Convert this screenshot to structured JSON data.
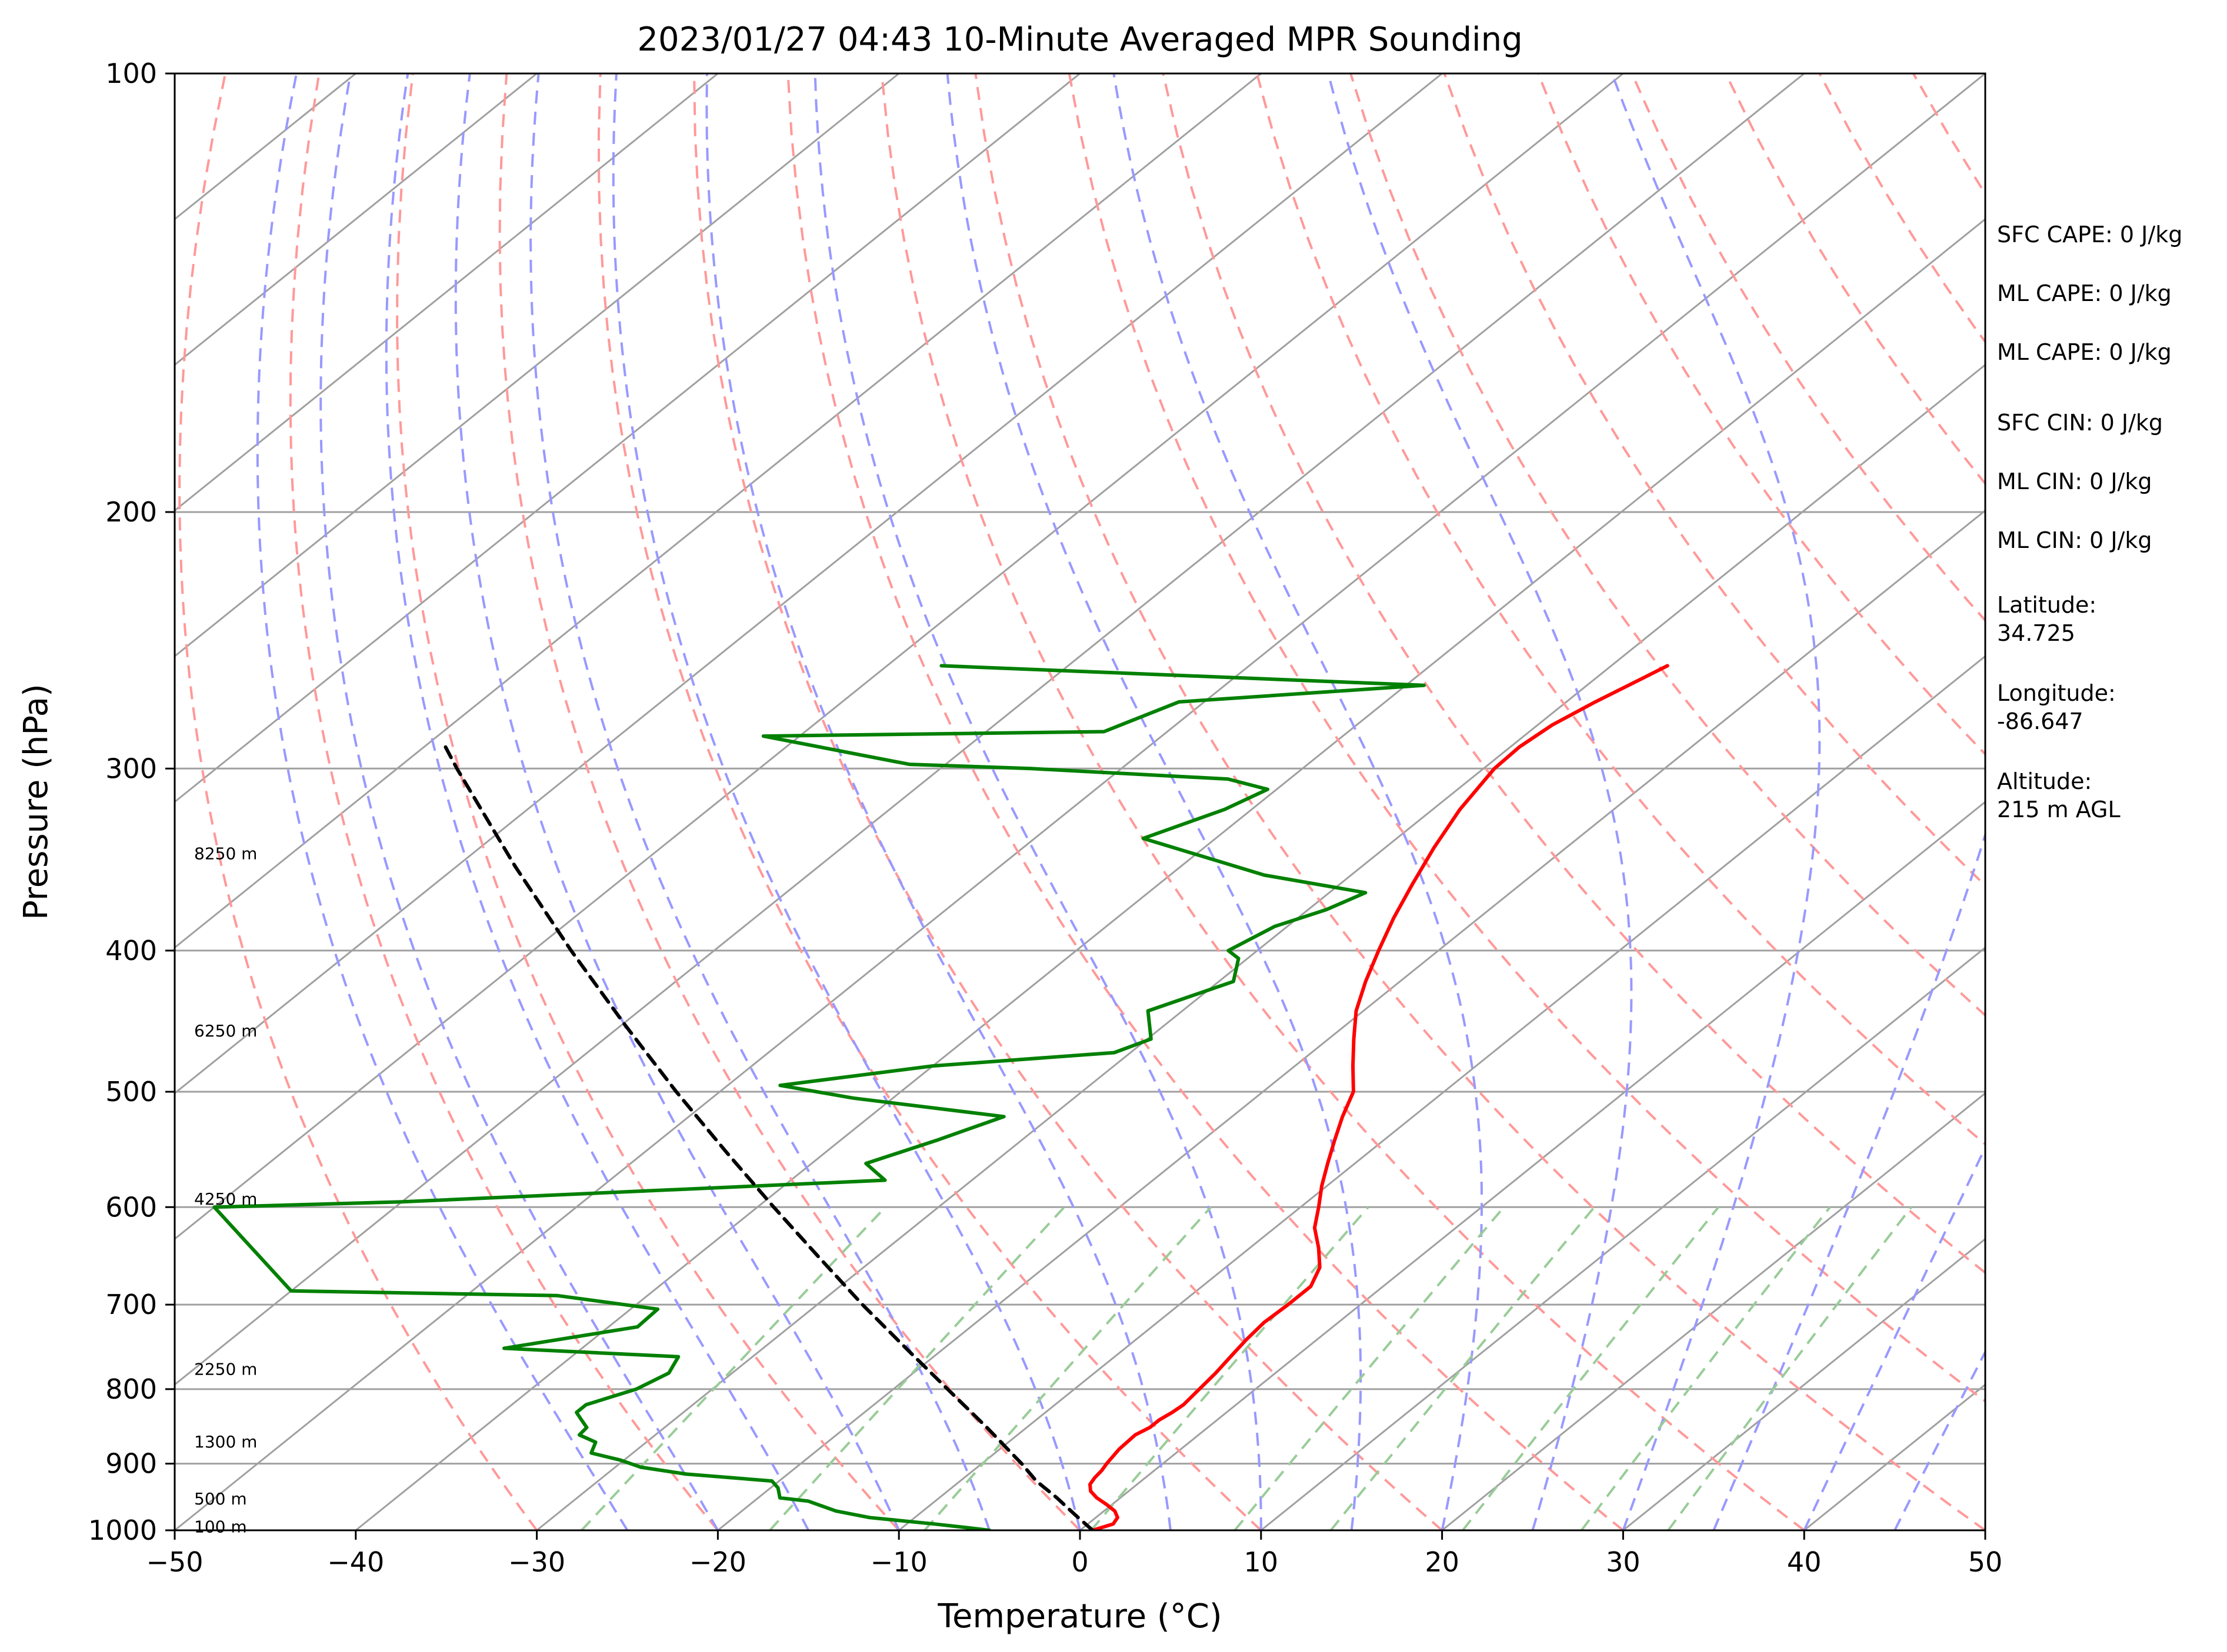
{
  "chart_data": {
    "type": "line",
    "title": "2023/01/27 04:43 10-Minute Averaged MPR Sounding",
    "xlabel": "Temperature (°C)",
    "ylabel": "Pressure (hPa)",
    "xlim": [
      -50,
      50
    ],
    "ylim": [
      1000,
      100
    ],
    "y_scale": "log",
    "x_ticks": [
      "−50",
      "−40",
      "−30",
      "−20",
      "−10",
      "0",
      "10",
      "20",
      "30",
      "40",
      "50"
    ],
    "x_tick_values": [
      -50,
      -40,
      -30,
      -20,
      -10,
      0,
      10,
      20,
      30,
      40,
      50
    ],
    "y_ticks": [
      "100",
      "200",
      "300",
      "400",
      "500",
      "600",
      "700",
      "800",
      "900",
      "1000"
    ],
    "y_tick_values": [
      100,
      200,
      300,
      400,
      500,
      600,
      700,
      800,
      900,
      1000
    ],
    "grid": "horizontal isobars only",
    "colors": {
      "temperature": "#ff0000",
      "dewpoint": "#008000",
      "parcel": "#000000",
      "isotherms": "#a0a0a0",
      "dry_adiabats": "#ff9999",
      "moist_adiabats": "#9999ff",
      "mixing_ratio": "#99cc99"
    },
    "series": [
      {
        "key": "temperature",
        "style": "solid",
        "points": [
          [
            1000,
            0.7
          ],
          [
            990,
            1.4
          ],
          [
            980,
            1.2
          ],
          [
            970,
            0.6
          ],
          [
            960,
            -0.3
          ],
          [
            950,
            -1.3
          ],
          [
            940,
            -2.1
          ],
          [
            930,
            -2.6
          ],
          [
            920,
            -2.8
          ],
          [
            910,
            -2.9
          ],
          [
            900,
            -3.1
          ],
          [
            880,
            -3.4
          ],
          [
            860,
            -3.5
          ],
          [
            850,
            -3.2
          ],
          [
            840,
            -3.2
          ],
          [
            830,
            -3.0
          ],
          [
            820,
            -2.9
          ],
          [
            800,
            -3.1
          ],
          [
            780,
            -3.3
          ],
          [
            760,
            -3.6
          ],
          [
            740,
            -3.9
          ],
          [
            720,
            -4.1
          ],
          [
            700,
            -4.0
          ],
          [
            680,
            -4.0
          ],
          [
            660,
            -4.8
          ],
          [
            640,
            -6.2
          ],
          [
            620,
            -7.8
          ],
          [
            600,
            -9.0
          ],
          [
            580,
            -10.3
          ],
          [
            560,
            -11.5
          ],
          [
            540,
            -12.7
          ],
          [
            520,
            -13.9
          ],
          [
            500,
            -15.0
          ],
          [
            480,
            -16.8
          ],
          [
            460,
            -18.6
          ],
          [
            440,
            -20.4
          ],
          [
            420,
            -21.9
          ],
          [
            400,
            -23.3
          ],
          [
            380,
            -24.7
          ],
          [
            360,
            -26.0
          ],
          [
            340,
            -27.3
          ],
          [
            320,
            -28.5
          ],
          [
            300,
            -29.4
          ],
          [
            290,
            -29.5
          ],
          [
            280,
            -29.2
          ],
          [
            270,
            -28.4
          ],
          [
            260,
            -27.4
          ],
          [
            255,
            -26.9
          ]
        ]
      },
      {
        "key": "dewpoint",
        "style": "solid",
        "points": [
          [
            1000,
            -5.0
          ],
          [
            995,
            -6.7
          ],
          [
            990,
            -8.5
          ],
          [
            980,
            -12.5
          ],
          [
            970,
            -14.8
          ],
          [
            955,
            -17.0
          ],
          [
            950,
            -18.8
          ],
          [
            935,
            -19.6
          ],
          [
            925,
            -20.4
          ],
          [
            915,
            -25.6
          ],
          [
            905,
            -28.6
          ],
          [
            895,
            -30.2
          ],
          [
            885,
            -32.3
          ],
          [
            870,
            -32.8
          ],
          [
            860,
            -34.2
          ],
          [
            850,
            -34.3
          ],
          [
            840,
            -35.1
          ],
          [
            830,
            -35.9
          ],
          [
            820,
            -35.9
          ],
          [
            800,
            -34.2
          ],
          [
            780,
            -33.5
          ],
          [
            760,
            -34.1
          ],
          [
            750,
            -44.3
          ],
          [
            725,
            -38.4
          ],
          [
            705,
            -38.5
          ],
          [
            690,
            -45.0
          ],
          [
            685,
            -60.0
          ],
          [
            600,
            -70.0
          ],
          [
            595,
            -60.0
          ],
          [
            575,
            -34.8
          ],
          [
            560,
            -37.0
          ],
          [
            540,
            -34.7
          ],
          [
            520,
            -32.6
          ],
          [
            505,
            -42.2
          ],
          [
            495,
            -47.1
          ],
          [
            480,
            -40.0
          ],
          [
            470,
            -30.9
          ],
          [
            460,
            -29.8
          ],
          [
            440,
            -31.9
          ],
          [
            420,
            -29.2
          ],
          [
            405,
            -30.5
          ],
          [
            400,
            -31.6
          ],
          [
            385,
            -30.7
          ],
          [
            375,
            -29.0
          ],
          [
            365,
            -28.0
          ],
          [
            355,
            -34.8
          ],
          [
            335,
            -44.0
          ],
          [
            320,
            -41.5
          ],
          [
            310,
            -40.5
          ],
          [
            305,
            -43.4
          ],
          [
            300,
            -55.0
          ],
          [
            298,
            -62.0
          ],
          [
            285,
            -72.0
          ],
          [
            283,
            -53.5
          ],
          [
            270,
            -51.4
          ],
          [
            263,
            -39.0
          ],
          [
            255,
            -67.0
          ]
        ]
      },
      {
        "key": "parcel",
        "style": "dashed",
        "points": [
          [
            1000,
            0.7
          ],
          [
            975,
            -1.4
          ],
          [
            950,
            -3.5
          ],
          [
            925,
            -5.8
          ],
          [
            900,
            -7.8
          ],
          [
            850,
            -12.2
          ],
          [
            800,
            -17.0
          ],
          [
            750,
            -22.1
          ],
          [
            700,
            -27.5
          ],
          [
            650,
            -33.1
          ],
          [
            600,
            -39.1
          ],
          [
            550,
            -45.5
          ],
          [
            500,
            -52.4
          ],
          [
            450,
            -59.8
          ],
          [
            400,
            -67.9
          ],
          [
            350,
            -76.8
          ],
          [
            300,
            -86.7
          ],
          [
            290,
            -88.8
          ]
        ]
      }
    ],
    "height_labels": [
      {
        "text": "100 m",
        "p": 994
      },
      {
        "text": "500 m",
        "p": 951
      },
      {
        "text": "1300 m",
        "p": 869
      },
      {
        "text": "2250 m",
        "p": 775
      },
      {
        "text": "4250 m",
        "p": 592
      },
      {
        "text": "6250 m",
        "p": 454
      },
      {
        "text": "8250 m",
        "p": 343
      }
    ],
    "info_panel": [
      "SFC CAPE: 0 J/kg",
      "ML CAPE: 0 J/kg",
      "ML CAPE: 0 J/kg",
      "SFC CIN: 0 J/kg",
      "ML CIN: 0 J/kg",
      "ML CIN: 0 J/kg",
      "Latitude:\n34.725",
      "Longitude:\n-86.647",
      "Altitude:\n215 m AGL"
    ]
  }
}
